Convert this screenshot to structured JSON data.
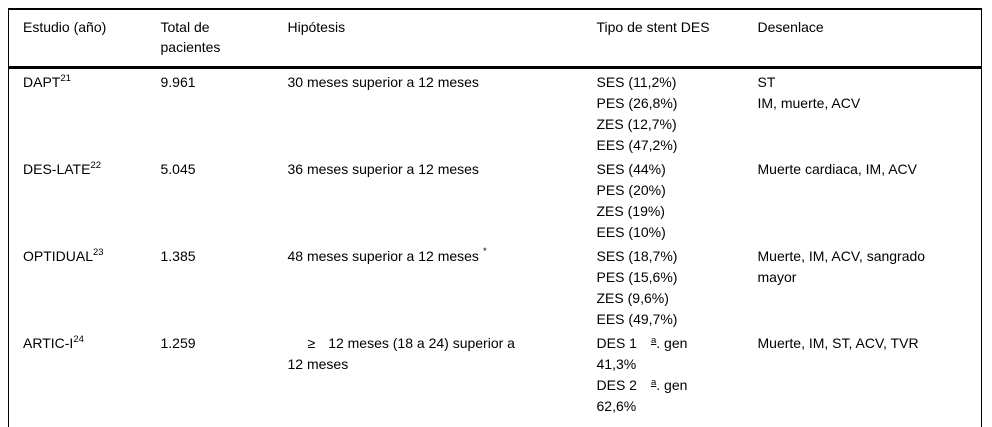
{
  "page": {
    "background": "#ffffff",
    "text_color": "#000000",
    "border_color": "#000000"
  },
  "table": {
    "headers": [
      "Estudio (año)",
      "Total de pacientes",
      "Hipótesis",
      "Tipo de stent DES",
      "Desenlace"
    ],
    "rows": [
      {
        "study": {
          "text": "DAPT",
          "sup": "21"
        },
        "total": "9.961",
        "hypothesis": [
          {
            "text": "30 meses superior a 12 meses"
          }
        ],
        "stents": [
          "SES (11,2%)",
          "PES (26,8%)",
          "ZES (12,7%)",
          "EES (47,2%)"
        ],
        "outcome": [
          "ST",
          "IM, muerte, ACV"
        ]
      },
      {
        "study": {
          "text": "DES-LATE",
          "sup": "22"
        },
        "total": "5.045",
        "hypothesis": [
          {
            "text": "36 meses superior a 12 meses"
          }
        ],
        "stents": [
          "SES (44%)",
          "PES (20%)",
          "ZES (19%)",
          "EES (10%)"
        ],
        "outcome": [
          "Muerte cardiaca, IM, ACV"
        ]
      },
      {
        "study": {
          "text": "OPTIDUAL",
          "sup": "23"
        },
        "total": "1.385",
        "hypothesis": [
          {
            "text": "48 meses superior a 12 meses",
            "sup": "*"
          }
        ],
        "stents": [
          "SES (18,7%)",
          "PES (15,6%)",
          "ZES (9,6%)",
          "EES (49,7%)"
        ],
        "outcome": [
          "Muerte, IM, ACV, sangrado",
          "mayor"
        ]
      },
      {
        "study": {
          "text": "ARTIC-I",
          "sup": "24"
        },
        "total": "1.259",
        "hypothesis": [
          {
            "prefix": "≥",
            "text": "12 meses (18 a 24) superior a",
            "indent": true
          },
          {
            "text": "12 meses"
          }
        ],
        "stents": [
          {
            "pre": "DES 1",
            "ord": "a",
            "post": ". gen"
          },
          "41,3%",
          {
            "pre": "DES 2",
            "ord": "a",
            "post": ". gen"
          },
          "62,6%"
        ],
        "outcome": [
          "Muerte, IM, ST, ACV, TVR"
        ]
      }
    ]
  }
}
